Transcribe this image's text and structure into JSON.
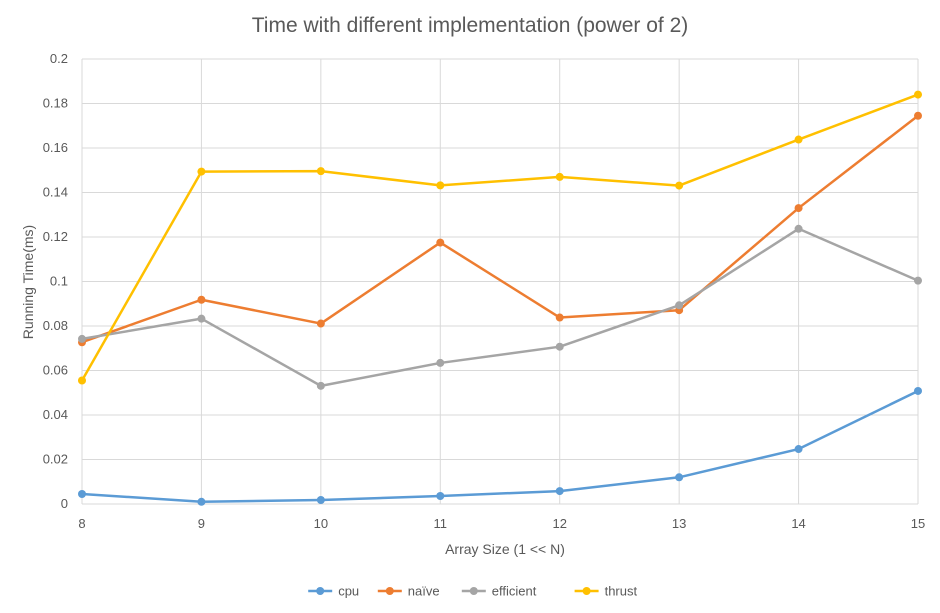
{
  "chart_data": {
    "type": "line",
    "title": "Time with different implementation (power of 2)",
    "xlabel": "Array Size (1 << N)",
    "ylabel": "Running Time(ms)",
    "x": [
      8,
      9,
      10,
      11,
      12,
      13,
      14,
      15
    ],
    "x_tick_labels": [
      "8",
      "9",
      "10",
      "11",
      "12",
      "13",
      "14",
      "15"
    ],
    "ylim": [
      0,
      0.2
    ],
    "y_ticks": [
      0,
      0.02,
      0.04,
      0.06,
      0.08,
      0.1,
      0.12,
      0.14,
      0.16,
      0.18,
      0.2
    ],
    "y_tick_labels": [
      "0",
      "0.02",
      "0.04",
      "0.06",
      "0.08",
      "0.1",
      "0.12",
      "0.14",
      "0.16",
      "0.18",
      "0.2"
    ],
    "grid": true,
    "legend_position": "bottom",
    "series": [
      {
        "name": "cpu",
        "color": "#5B9BD5",
        "values": [
          0.0045,
          0.001,
          0.0018,
          0.0036,
          0.0058,
          0.012,
          0.0247,
          0.0508
        ]
      },
      {
        "name": "naïve",
        "color": "#ED7D31",
        "values": [
          0.0727,
          0.0918,
          0.0811,
          0.1175,
          0.0838,
          0.0871,
          0.133,
          0.1745
        ]
      },
      {
        "name": "efficient",
        "color": "#A5A5A5",
        "values": [
          0.0742,
          0.0833,
          0.0531,
          0.0634,
          0.0707,
          0.0893,
          0.1237,
          0.1004
        ]
      },
      {
        "name": "thrust",
        "color": "#FFC000",
        "values": [
          0.0555,
          0.1494,
          0.1496,
          0.1432,
          0.147,
          0.1431,
          0.1638,
          0.184
        ]
      }
    ]
  }
}
